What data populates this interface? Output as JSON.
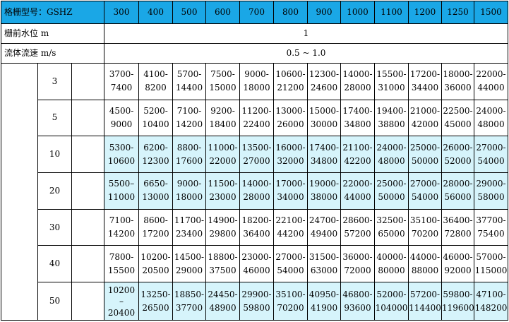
{
  "header": {
    "model_label": "格栅型号：GSHZ",
    "sizes": [
      "300",
      "400",
      "500",
      "600",
      "700",
      "800",
      "900",
      "1000",
      "1100",
      "1200",
      "1250",
      "1500"
    ]
  },
  "params": [
    {
      "label": "栅前水位 m",
      "value": "1"
    },
    {
      "label": "流体流速 m/s",
      "value": "0.5 ~ 1.0"
    }
  ],
  "rows": [
    {
      "key": "3",
      "highlight": false,
      "cells": [
        [
          "3700-",
          "7400"
        ],
        [
          "4100-",
          "8200"
        ],
        [
          "5700-",
          "14400"
        ],
        [
          "7500-",
          "15000"
        ],
        [
          "9000-",
          "18000"
        ],
        [
          "10600-",
          "21200"
        ],
        [
          "12300-",
          "24600"
        ],
        [
          "14000-",
          "28000"
        ],
        [
          "15500-",
          "31000"
        ],
        [
          "17200-",
          "34400"
        ],
        [
          "18000-",
          "36000"
        ],
        [
          "22000-",
          "44000"
        ]
      ]
    },
    {
      "key": "5",
      "highlight": false,
      "cells": [
        [
          "4500-",
          "9000"
        ],
        [
          "5200-",
          "10400"
        ],
        [
          "7100-",
          "14200"
        ],
        [
          "9200-",
          "18400"
        ],
        [
          "11200-",
          "22400"
        ],
        [
          "13000-",
          "26000"
        ],
        [
          "15000-",
          "30000"
        ],
        [
          "17400-",
          "34800"
        ],
        [
          "19400-",
          "38800"
        ],
        [
          "21000-",
          "42000"
        ],
        [
          "22500-",
          "45000"
        ],
        [
          "24000-",
          "48000"
        ]
      ]
    },
    {
      "key": "10",
      "highlight": true,
      "cells": [
        [
          "5300-",
          "10600"
        ],
        [
          "6200-",
          "12300"
        ],
        [
          "8800-",
          "17600"
        ],
        [
          "11000-",
          "22000"
        ],
        [
          "13500-",
          "27000"
        ],
        [
          "16000-",
          "32000"
        ],
        [
          "17400-",
          "34800"
        ],
        [
          "21100-",
          "42200"
        ],
        [
          "24000-",
          "48000"
        ],
        [
          "25000-",
          "50000"
        ],
        [
          "26000-",
          "52000"
        ],
        [
          "27000-",
          "54000"
        ]
      ]
    },
    {
      "key": "20",
      "highlight": true,
      "cells": [
        [
          "5500–",
          "11000"
        ],
        [
          "6650-",
          "13000"
        ],
        [
          "9000-",
          "18000"
        ],
        [
          "11500-",
          "23000"
        ],
        [
          "14000-",
          "28000"
        ],
        [
          "17000-",
          "34000"
        ],
        [
          "19000-",
          "38000"
        ],
        [
          "22000-",
          "44000"
        ],
        [
          "25000-",
          "50000"
        ],
        [
          "27000-",
          "54000"
        ],
        [
          "28000-",
          "56000"
        ],
        [
          "29000-",
          "58000"
        ]
      ]
    },
    {
      "key": "30",
      "highlight": false,
      "cells": [
        [
          "7100-",
          "14200"
        ],
        [
          "8600-",
          "17200"
        ],
        [
          "11700-",
          "23400"
        ],
        [
          "14900-",
          "29800"
        ],
        [
          "18200-",
          "36400"
        ],
        [
          "22100-",
          "44200"
        ],
        [
          "24700-",
          "49400"
        ],
        [
          "28600-",
          "57200"
        ],
        [
          "32500-",
          "65000"
        ],
        [
          "35100-",
          "70200"
        ],
        [
          "36400-",
          "72800"
        ],
        [
          "37700-",
          "75400"
        ]
      ]
    },
    {
      "key": "40",
      "highlight": false,
      "cells": [
        [
          "7800-",
          "15500"
        ],
        [
          "10200-",
          "20500"
        ],
        [
          "14500-",
          "29000"
        ],
        [
          "18800-",
          "37500"
        ],
        [
          "23000-",
          "46000"
        ],
        [
          "27000-",
          "54000"
        ],
        [
          "31500-",
          "63000"
        ],
        [
          "36000-",
          "72000"
        ],
        [
          "40000-",
          "80000"
        ],
        [
          "44000-",
          "88000"
        ],
        [
          "46000-",
          "92000"
        ],
        [
          "57000-",
          "115000"
        ]
      ]
    },
    {
      "key": "50",
      "highlight": true,
      "cells": [
        [
          "10200",
          "–",
          "20400"
        ],
        [
          "13250-",
          "26500"
        ],
        [
          "18850-",
          "37700"
        ],
        [
          "24450-",
          "48900"
        ],
        [
          "29900-",
          "59800"
        ],
        [
          "35100-",
          "70200"
        ],
        [
          "40950-",
          "41900"
        ],
        [
          "46800-",
          "93600"
        ],
        [
          "52000-",
          "104000"
        ],
        [
          "57200-",
          "114400"
        ],
        [
          "59800-",
          "119600"
        ],
        [
          "47100-",
          "148200"
        ]
      ]
    }
  ]
}
